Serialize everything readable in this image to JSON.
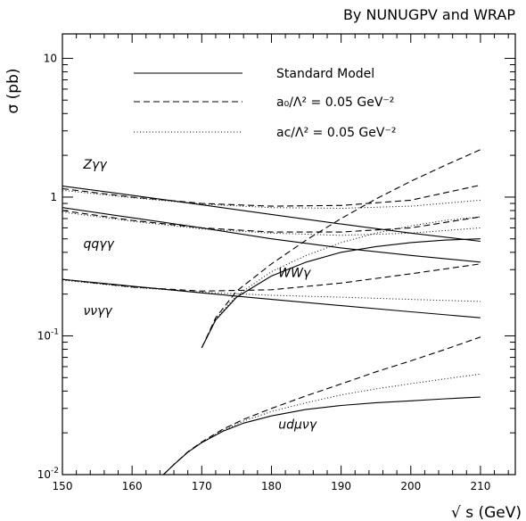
{
  "header_text": "By NUNUGPV and WRAP",
  "chart_data": {
    "type": "line",
    "xlabel": "√ s (GeV)",
    "ylabel": "σ (pb)",
    "xlim": [
      150,
      215
    ],
    "ylim": [
      0.01,
      15
    ],
    "yscale": "log",
    "x_ticks": [
      150,
      160,
      170,
      180,
      190,
      200,
      210
    ],
    "y_ticks": [
      {
        "value": 0.01,
        "base": "10",
        "exp": "-2"
      },
      {
        "value": 0.1,
        "base": "10",
        "exp": "-1"
      },
      {
        "value": 1,
        "base": "1",
        "exp": ""
      },
      {
        "value": 10,
        "base": "10",
        "exp": ""
      }
    ],
    "legend": [
      {
        "style": "solid",
        "label": "Standard Model"
      },
      {
        "style": "dashed",
        "label": "a₀/Λ² = 0.05 GeV⁻²"
      },
      {
        "style": "dotted",
        "label": "aᴄ/Λ² = 0.05 GeV⁻²"
      }
    ],
    "process_labels": [
      {
        "text": "Zγγ",
        "x": 153,
        "y": 1.6
      },
      {
        "text": "qqγγ",
        "x": 153,
        "y": 0.43
      },
      {
        "text": "WWγ",
        "x": 181,
        "y": 0.265
      },
      {
        "text": "ννγγ",
        "x": 153,
        "y": 0.142
      },
      {
        "text": "udμνγ",
        "x": 181,
        "y": 0.0215
      }
    ],
    "series": [
      {
        "process": "Zγγ",
        "style": "solid",
        "x": [
          150,
          160,
          170,
          180,
          190,
          200,
          210
        ],
        "y": [
          1.2,
          1.03,
          0.88,
          0.75,
          0.64,
          0.55,
          0.48
        ]
      },
      {
        "process": "Zγγ",
        "style": "dashed",
        "x": [
          150,
          160,
          170,
          180,
          190,
          200,
          210
        ],
        "y": [
          1.15,
          1.0,
          0.9,
          0.86,
          0.87,
          0.95,
          1.22
        ]
      },
      {
        "process": "Zγγ",
        "style": "dotted",
        "x": [
          150,
          160,
          170,
          180,
          190,
          200,
          210
        ],
        "y": [
          1.12,
          0.99,
          0.89,
          0.84,
          0.83,
          0.86,
          0.95
        ]
      },
      {
        "process": "qqγγ",
        "style": "solid",
        "x": [
          150,
          160,
          170,
          180,
          190,
          200,
          210
        ],
        "y": [
          0.84,
          0.71,
          0.6,
          0.5,
          0.43,
          0.38,
          0.34
        ]
      },
      {
        "process": "qqγγ",
        "style": "dashed",
        "x": [
          150,
          160,
          170,
          180,
          190,
          200,
          210
        ],
        "y": [
          0.8,
          0.68,
          0.6,
          0.56,
          0.56,
          0.6,
          0.72
        ]
      },
      {
        "process": "qqγγ",
        "style": "dotted",
        "x": [
          150,
          160,
          170,
          180,
          190,
          200,
          210
        ],
        "y": [
          0.78,
          0.67,
          0.59,
          0.55,
          0.53,
          0.55,
          0.6
        ]
      },
      {
        "process": "WWγ",
        "style": "solid",
        "x": [
          170,
          172,
          175,
          180,
          185,
          190,
          195,
          200,
          205,
          210
        ],
        "y": [
          0.082,
          0.13,
          0.19,
          0.27,
          0.34,
          0.4,
          0.44,
          0.47,
          0.49,
          0.5
        ]
      },
      {
        "process": "WWγ",
        "style": "dashed",
        "x": [
          170,
          172,
          175,
          180,
          185,
          190,
          195,
          200,
          205,
          210
        ],
        "y": [
          0.082,
          0.135,
          0.21,
          0.33,
          0.49,
          0.7,
          0.97,
          1.3,
          1.7,
          2.2
        ]
      },
      {
        "process": "WWγ",
        "style": "dotted",
        "x": [
          170,
          172,
          175,
          180,
          185,
          190,
          195,
          200,
          205,
          210
        ],
        "y": [
          0.082,
          0.132,
          0.195,
          0.29,
          0.38,
          0.47,
          0.55,
          0.62,
          0.68,
          0.72
        ]
      },
      {
        "process": "ννγγ",
        "style": "solid",
        "x": [
          150,
          160,
          170,
          180,
          190,
          200,
          210
        ],
        "y": [
          0.255,
          0.228,
          0.204,
          0.183,
          0.165,
          0.149,
          0.135
        ]
      },
      {
        "process": "ννγγ",
        "style": "dashed",
        "x": [
          150,
          160,
          170,
          180,
          190,
          200,
          210
        ],
        "y": [
          0.255,
          0.225,
          0.21,
          0.215,
          0.24,
          0.28,
          0.33
        ]
      },
      {
        "process": "ννγγ",
        "style": "dotted",
        "x": [
          150,
          160,
          170,
          180,
          190,
          200,
          210
        ],
        "y": [
          0.252,
          0.224,
          0.206,
          0.196,
          0.19,
          0.183,
          0.177
        ]
      },
      {
        "process": "udμνγ",
        "style": "solid",
        "x": [
          164.5,
          166,
          168,
          170,
          173,
          176,
          180,
          185,
          190,
          195,
          200,
          205,
          210
        ],
        "y": [
          0.01,
          0.0118,
          0.0145,
          0.017,
          0.0205,
          0.0235,
          0.0265,
          0.0295,
          0.0315,
          0.033,
          0.034,
          0.0352,
          0.0362
        ]
      },
      {
        "process": "udμνγ",
        "style": "dashed",
        "x": [
          164.5,
          166,
          168,
          170,
          173,
          176,
          180,
          185,
          190,
          195,
          200,
          205,
          210
        ],
        "y": [
          0.01,
          0.0118,
          0.0146,
          0.0172,
          0.0212,
          0.025,
          0.03,
          0.037,
          0.045,
          0.055,
          0.066,
          0.08,
          0.098
        ]
      },
      {
        "process": "udμνγ",
        "style": "dotted",
        "x": [
          164.5,
          166,
          168,
          170,
          173,
          176,
          180,
          185,
          190,
          195,
          200,
          205,
          210
        ],
        "y": [
          0.01,
          0.0118,
          0.0145,
          0.0171,
          0.0208,
          0.0243,
          0.0285,
          0.033,
          0.0375,
          0.0415,
          0.0452,
          0.049,
          0.053
        ]
      }
    ]
  }
}
